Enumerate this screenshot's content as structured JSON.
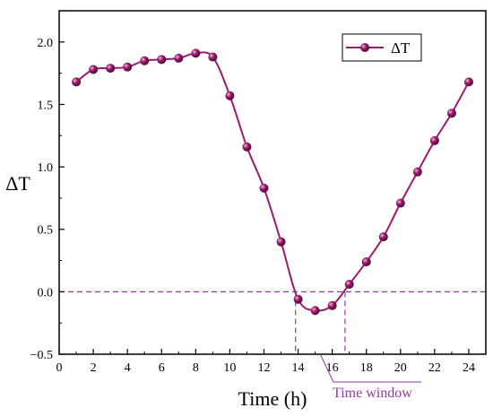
{
  "chart_data": {
    "type": "line",
    "title": "",
    "xlabel": "Time (h)",
    "ylabel": "ΔT",
    "xlim": [
      0,
      25
    ],
    "ylim": [
      -0.5,
      2.25
    ],
    "xticks": [
      0,
      2,
      4,
      6,
      8,
      10,
      12,
      14,
      16,
      18,
      20,
      22,
      24
    ],
    "yticks": [
      -0.5,
      0.0,
      0.5,
      1.0,
      1.5,
      2.0
    ],
    "ytick_labels": [
      "−0.5",
      "0.0",
      "0.5",
      "1.0",
      "1.5",
      "2.0"
    ],
    "grid": false,
    "legend_position": "top-right",
    "series": [
      {
        "name": "ΔT",
        "color": "#9b1b6e",
        "x": [
          1,
          2,
          3,
          4,
          5,
          6,
          7,
          8,
          9,
          10,
          11,
          12,
          13,
          14,
          15,
          16,
          17,
          18,
          19,
          20,
          21,
          22,
          23,
          24
        ],
        "y": [
          1.68,
          1.78,
          1.79,
          1.8,
          1.85,
          1.86,
          1.87,
          1.91,
          1.88,
          1.57,
          1.16,
          0.83,
          0.4,
          -0.06,
          -0.15,
          -0.11,
          0.06,
          0.24,
          0.44,
          0.71,
          0.96,
          1.21,
          1.43,
          1.68
        ]
      }
    ],
    "reference_lines": {
      "horizontal_y": 0.0,
      "vertical_x": [
        13.85,
        16.75
      ],
      "color": "#8c3c9c"
    },
    "annotation": {
      "text": "Time window",
      "color": "#8c3c9c",
      "arrow_target_x": 15.3,
      "arrow_target_y": -0.5
    }
  }
}
